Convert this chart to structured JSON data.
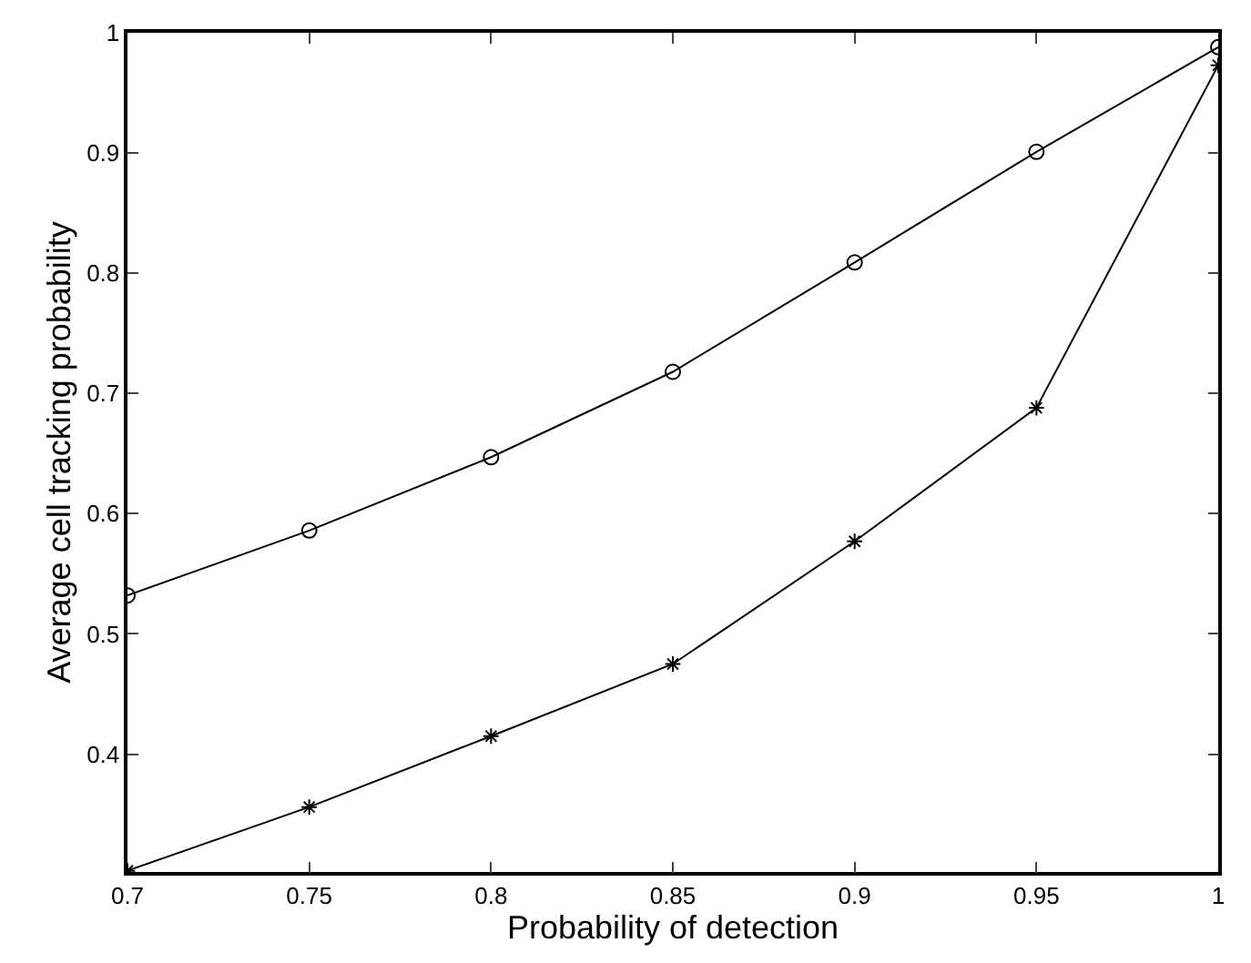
{
  "chart_data": {
    "type": "line",
    "xlabel": "Probability of detection",
    "ylabel": "Average cell tracking probability",
    "x": [
      0.7,
      0.75,
      0.8,
      0.85,
      0.9,
      0.95,
      1
    ],
    "series": [
      {
        "color": "#000000",
        "marker": "circle",
        "values": [
          0.532,
          0.586,
          0.647,
          0.718,
          0.809,
          0.901,
          0.988
        ]
      },
      {
        "color": "#000000",
        "marker": "cross",
        "values": [
          0.303,
          0.356,
          0.415,
          0.475,
          0.577,
          0.688,
          0.973
        ]
      }
    ],
    "xlim": [
      0.7,
      1
    ],
    "xticks": [
      0.7,
      0.75,
      0.8,
      0.85,
      0.9,
      0.95,
      1
    ],
    "ylim": [
      0.302,
      1
    ],
    "yticks": [
      0.4,
      0.5,
      0.6,
      0.7,
      0.8,
      0.9,
      1
    ],
    "grid": false,
    "line_style": "solid"
  }
}
